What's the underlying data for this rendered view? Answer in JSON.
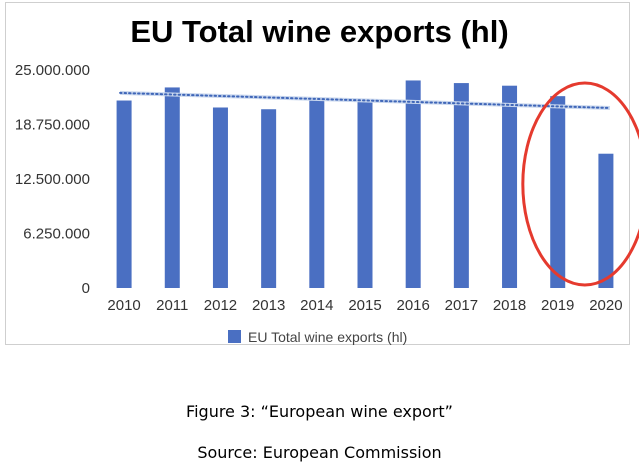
{
  "chart_data": {
    "type": "bar",
    "title": "EU Total wine exports (hl)",
    "categories": [
      "2010",
      "2011",
      "2012",
      "2013",
      "2014",
      "2015",
      "2016",
      "2017",
      "2018",
      "2019",
      "2020"
    ],
    "series": [
      {
        "name": "EU Total wine exports (hl)",
        "values": [
          21500000,
          23000000,
          20700000,
          20500000,
          21500000,
          21500000,
          23800000,
          23500000,
          23200000,
          22000000,
          15400000
        ]
      }
    ],
    "yticks": [
      "0",
      "6.250.000",
      "12.500.000",
      "18.750.000",
      "25.000.000"
    ],
    "ylim": [
      0,
      25000000
    ],
    "trendline": {
      "type": "linear",
      "style": "dotted"
    },
    "annotation": {
      "type": "ellipse",
      "color": "#e53a2e",
      "categories": [
        "2019",
        "2020"
      ]
    },
    "legend_position": "bottom",
    "grid": false,
    "bar_color": "#4a6fc2"
  },
  "caption": {
    "figure": "Figure 3: “European wine export”",
    "source": "Source: European Commission"
  }
}
